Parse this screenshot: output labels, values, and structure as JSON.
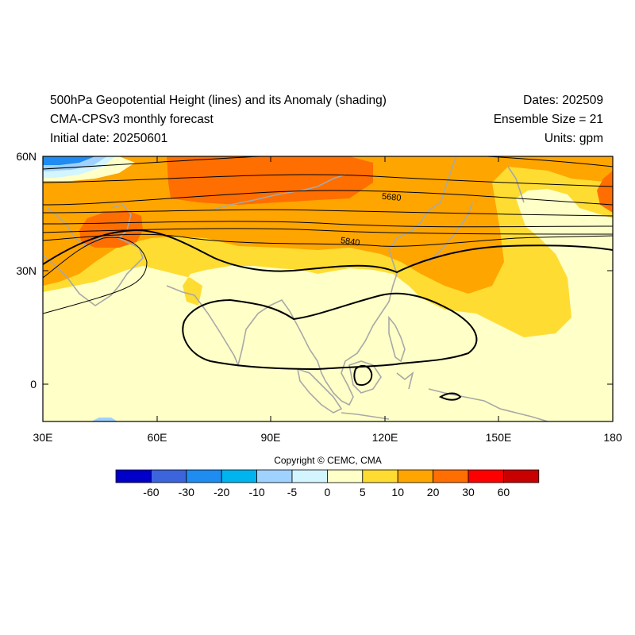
{
  "header": {
    "title": "500hPa Geopotential Height (lines) and its Anomaly (shading)",
    "model": "CMA-CPSv3 monthly forecast",
    "initial_date": "Initial date: 20250601",
    "dates": "Dates: 202509",
    "ensemble": "Ensemble Size = 21",
    "units": "Units: gpm"
  },
  "map": {
    "lat_ticks": [
      "60N",
      "30N",
      "0"
    ],
    "lon_ticks": [
      "30E",
      "60E",
      "90E",
      "120E",
      "150E",
      "180"
    ],
    "contour_labels": [
      "5680",
      "5840"
    ]
  },
  "footer": {
    "copyright": "Copyright © CEMC, CMA"
  },
  "colorbar": {
    "labels": [
      "-60",
      "-30",
      "-20",
      "-10",
      "-5",
      "0",
      "5",
      "10",
      "20",
      "30",
      "60"
    ],
    "colors": [
      "#0000c8",
      "#3c64dc",
      "#1e8cf0",
      "#00b4f0",
      "#a0d2ff",
      "#d2f5ff",
      "#ffffc8",
      "#ffdc32",
      "#ffa500",
      "#ff6e00",
      "#ff0000",
      "#c80000"
    ]
  }
}
